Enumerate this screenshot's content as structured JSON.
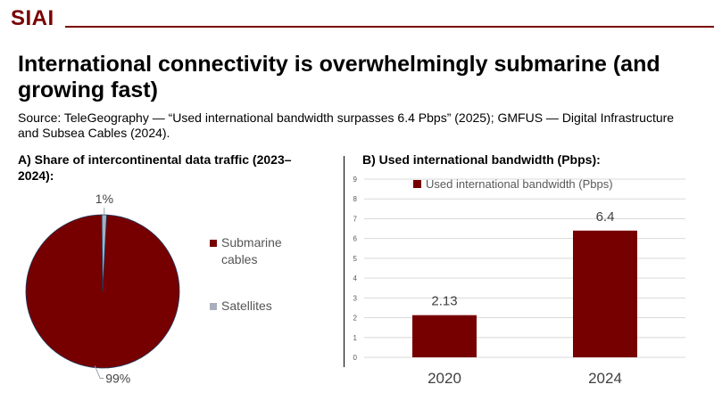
{
  "brand": {
    "logo_text": "SIAI",
    "accent_color": "#7a0000"
  },
  "slide": {
    "title": "International connectivity is overwhelmingly submarine (and growing fast)",
    "source": "Source: TeleGeography — “Used international bandwidth surpasses 6.4 Pbps” (2025); GMFUS — Digital Infrastructure and Subsea Cables (2024)."
  },
  "chart_data": [
    {
      "type": "pie",
      "title": "A) Share of intercontinental data traffic (2023–2024):",
      "labels": [
        "Submarine cables",
        "Satellites"
      ],
      "values": [
        99,
        1
      ],
      "value_labels": [
        "99%",
        "1%"
      ],
      "colors": [
        "#760000",
        "#a8b0bc"
      ],
      "legend_position": "right"
    },
    {
      "type": "bar",
      "title": "B) Used international bandwidth (Pbps):",
      "categories": [
        "2020",
        "2024"
      ],
      "series": [
        {
          "name": "Used international bandwidth (Pbps)",
          "values": [
            2.13,
            6.4
          ]
        }
      ],
      "value_labels": [
        "2.13",
        "6.4"
      ],
      "ylim": [
        0,
        9
      ],
      "yticks": [
        0,
        1,
        2,
        3,
        4,
        5,
        6,
        7,
        8,
        9
      ],
      "grid": true,
      "legend_position": "top",
      "color": "#760000"
    }
  ]
}
